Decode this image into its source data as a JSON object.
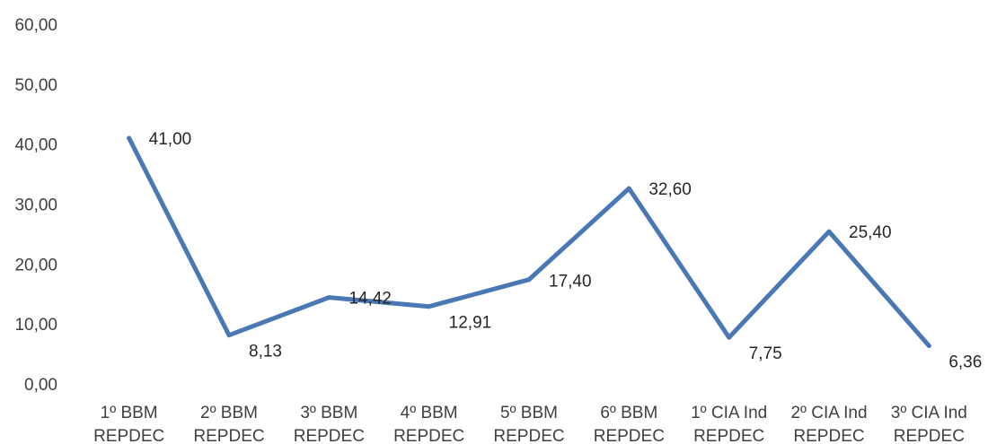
{
  "chart_data": {
    "type": "line",
    "title": "",
    "xlabel": "",
    "ylabel": "",
    "ylim": [
      0,
      60
    ],
    "y_ticks": [
      "0,00",
      "10,00",
      "20,00",
      "30,00",
      "40,00",
      "50,00",
      "60,00"
    ],
    "grid": false,
    "legend": "none",
    "categories": [
      [
        "1º BBM",
        "REPDEC"
      ],
      [
        "2º BBM",
        "REPDEC"
      ],
      [
        "3º BBM",
        "REPDEC"
      ],
      [
        "4º BBM",
        "REPDEC"
      ],
      [
        "5º BBM",
        "REPDEC"
      ],
      [
        "6º BBM",
        "REPDEC"
      ],
      [
        "1º CIA Ind",
        "REPDEC"
      ],
      [
        "2º CIA Ind",
        "REPDEC"
      ],
      [
        "3º CIA Ind",
        "REPDEC"
      ]
    ],
    "series": [
      {
        "values": [
          41.0,
          8.13,
          14.42,
          12.91,
          17.4,
          32.6,
          7.75,
          25.4,
          6.36
        ],
        "labels": [
          "41,00",
          "8,13",
          "14,42",
          "12,91",
          "17,40",
          "32,60",
          "7,75",
          "25,40",
          "6,36"
        ],
        "color": "#4a78b5"
      }
    ]
  }
}
